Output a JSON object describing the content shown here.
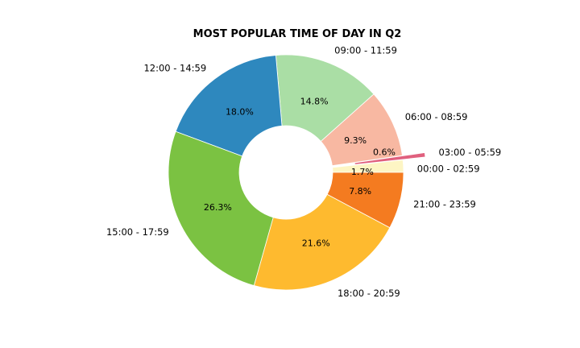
{
  "chart_data": {
    "type": "pie",
    "title": "MOST POPULAR TIME OF DAY IN Q2",
    "donut": true,
    "start_angle_deg": 0,
    "direction": "counterclockwise",
    "slices": [
      {
        "label": "00:00 - 02:59",
        "value": 1.7,
        "pct_text": "1.7%",
        "color": "#fdf5c4",
        "explode": false
      },
      {
        "label": "03:00 - 05:59",
        "value": 0.6,
        "pct_text": "0.6%",
        "color": "#e0607e",
        "explode": true
      },
      {
        "label": "06:00 - 08:59",
        "value": 9.3,
        "pct_text": "9.3%",
        "color": "#f8b8a2",
        "explode": false
      },
      {
        "label": "09:00 - 11:59",
        "value": 14.8,
        "pct_text": "14.8%",
        "color": "#aadea5",
        "explode": false
      },
      {
        "label": "12:00 - 14:59",
        "value": 18.0,
        "pct_text": "18.0%",
        "color": "#2e88be",
        "explode": false
      },
      {
        "label": "15:00 - 17:59",
        "value": 26.3,
        "pct_text": "26.3%",
        "color": "#7bc242",
        "explode": false
      },
      {
        "label": "18:00 - 20:59",
        "value": 21.6,
        "pct_text": "21.6%",
        "color": "#feba2f",
        "explode": false
      },
      {
        "label": "21:00 - 23:59",
        "value": 7.8,
        "pct_text": "7.8%",
        "color": "#f47b20",
        "explode": false
      }
    ]
  }
}
